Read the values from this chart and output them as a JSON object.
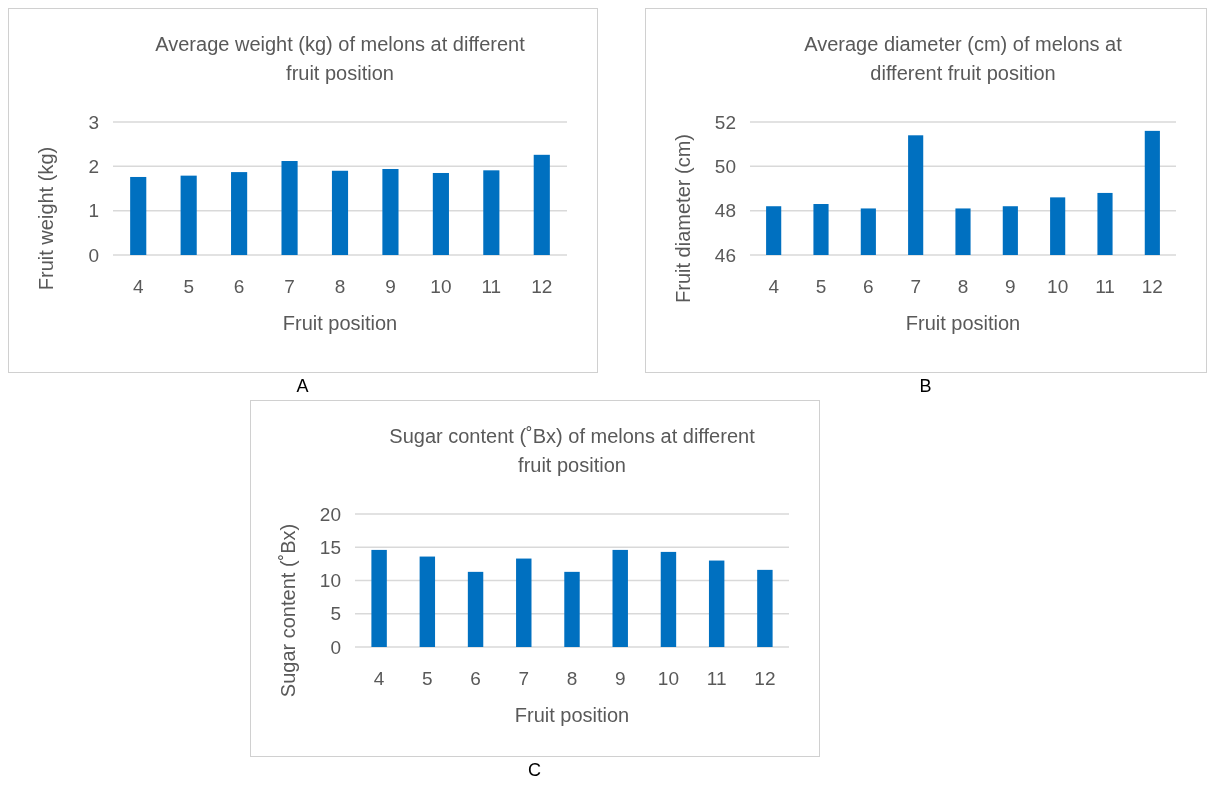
{
  "chart_data": [
    {
      "type": "bar",
      "title": "Average weight (kg) of melons at different fruit position",
      "xlabel": "Fruit position",
      "ylabel": "Fruit  weight (kg)",
      "categories": [
        "4",
        "5",
        "6",
        "7",
        "8",
        "9",
        "10",
        "11",
        "12"
      ],
      "series": [
        {
          "color": "#0070c0",
          "values": [
            1.76,
            1.79,
            1.87,
            2.12,
            1.9,
            1.94,
            1.85,
            1.91,
            2.26
          ]
        }
      ],
      "ylim": [
        0,
        3
      ],
      "yticks": [
        0,
        1,
        2,
        3
      ],
      "grid": "y",
      "annotations": [
        "A"
      ]
    },
    {
      "type": "bar",
      "title": "Average diameter (cm) of melons at different fruit position",
      "xlabel": "Fruit position",
      "ylabel": "Fruit diameter (cm)",
      "categories": [
        "4",
        "5",
        "6",
        "7",
        "8",
        "9",
        "10",
        "11",
        "12"
      ],
      "series": [
        {
          "color": "#0070c0",
          "values": [
            48.2,
            48.3,
            48.1,
            51.4,
            48.1,
            48.2,
            48.6,
            48.8,
            51.6
          ]
        }
      ],
      "ylim": [
        46,
        52
      ],
      "yticks": [
        46,
        48,
        50,
        52
      ],
      "grid": "y",
      "annotations": [
        "B"
      ]
    },
    {
      "type": "bar",
      "title": "Sugar content (˚Bx) of melons at different fruit position",
      "xlabel": "Fruit position",
      "ylabel": "Sugar content (˚Bx)",
      "categories": [
        "4",
        "5",
        "6",
        "7",
        "8",
        "9",
        "10",
        "11",
        "12"
      ],
      "series": [
        {
          "color": "#0070c0",
          "values": [
            14.6,
            13.6,
            11.3,
            13.3,
            11.3,
            14.6,
            14.3,
            13.0,
            11.6
          ]
        }
      ],
      "ylim": [
        0,
        20
      ],
      "yticks": [
        0,
        5,
        10,
        15,
        20
      ],
      "grid": "y",
      "annotations": [
        "C"
      ]
    }
  ]
}
